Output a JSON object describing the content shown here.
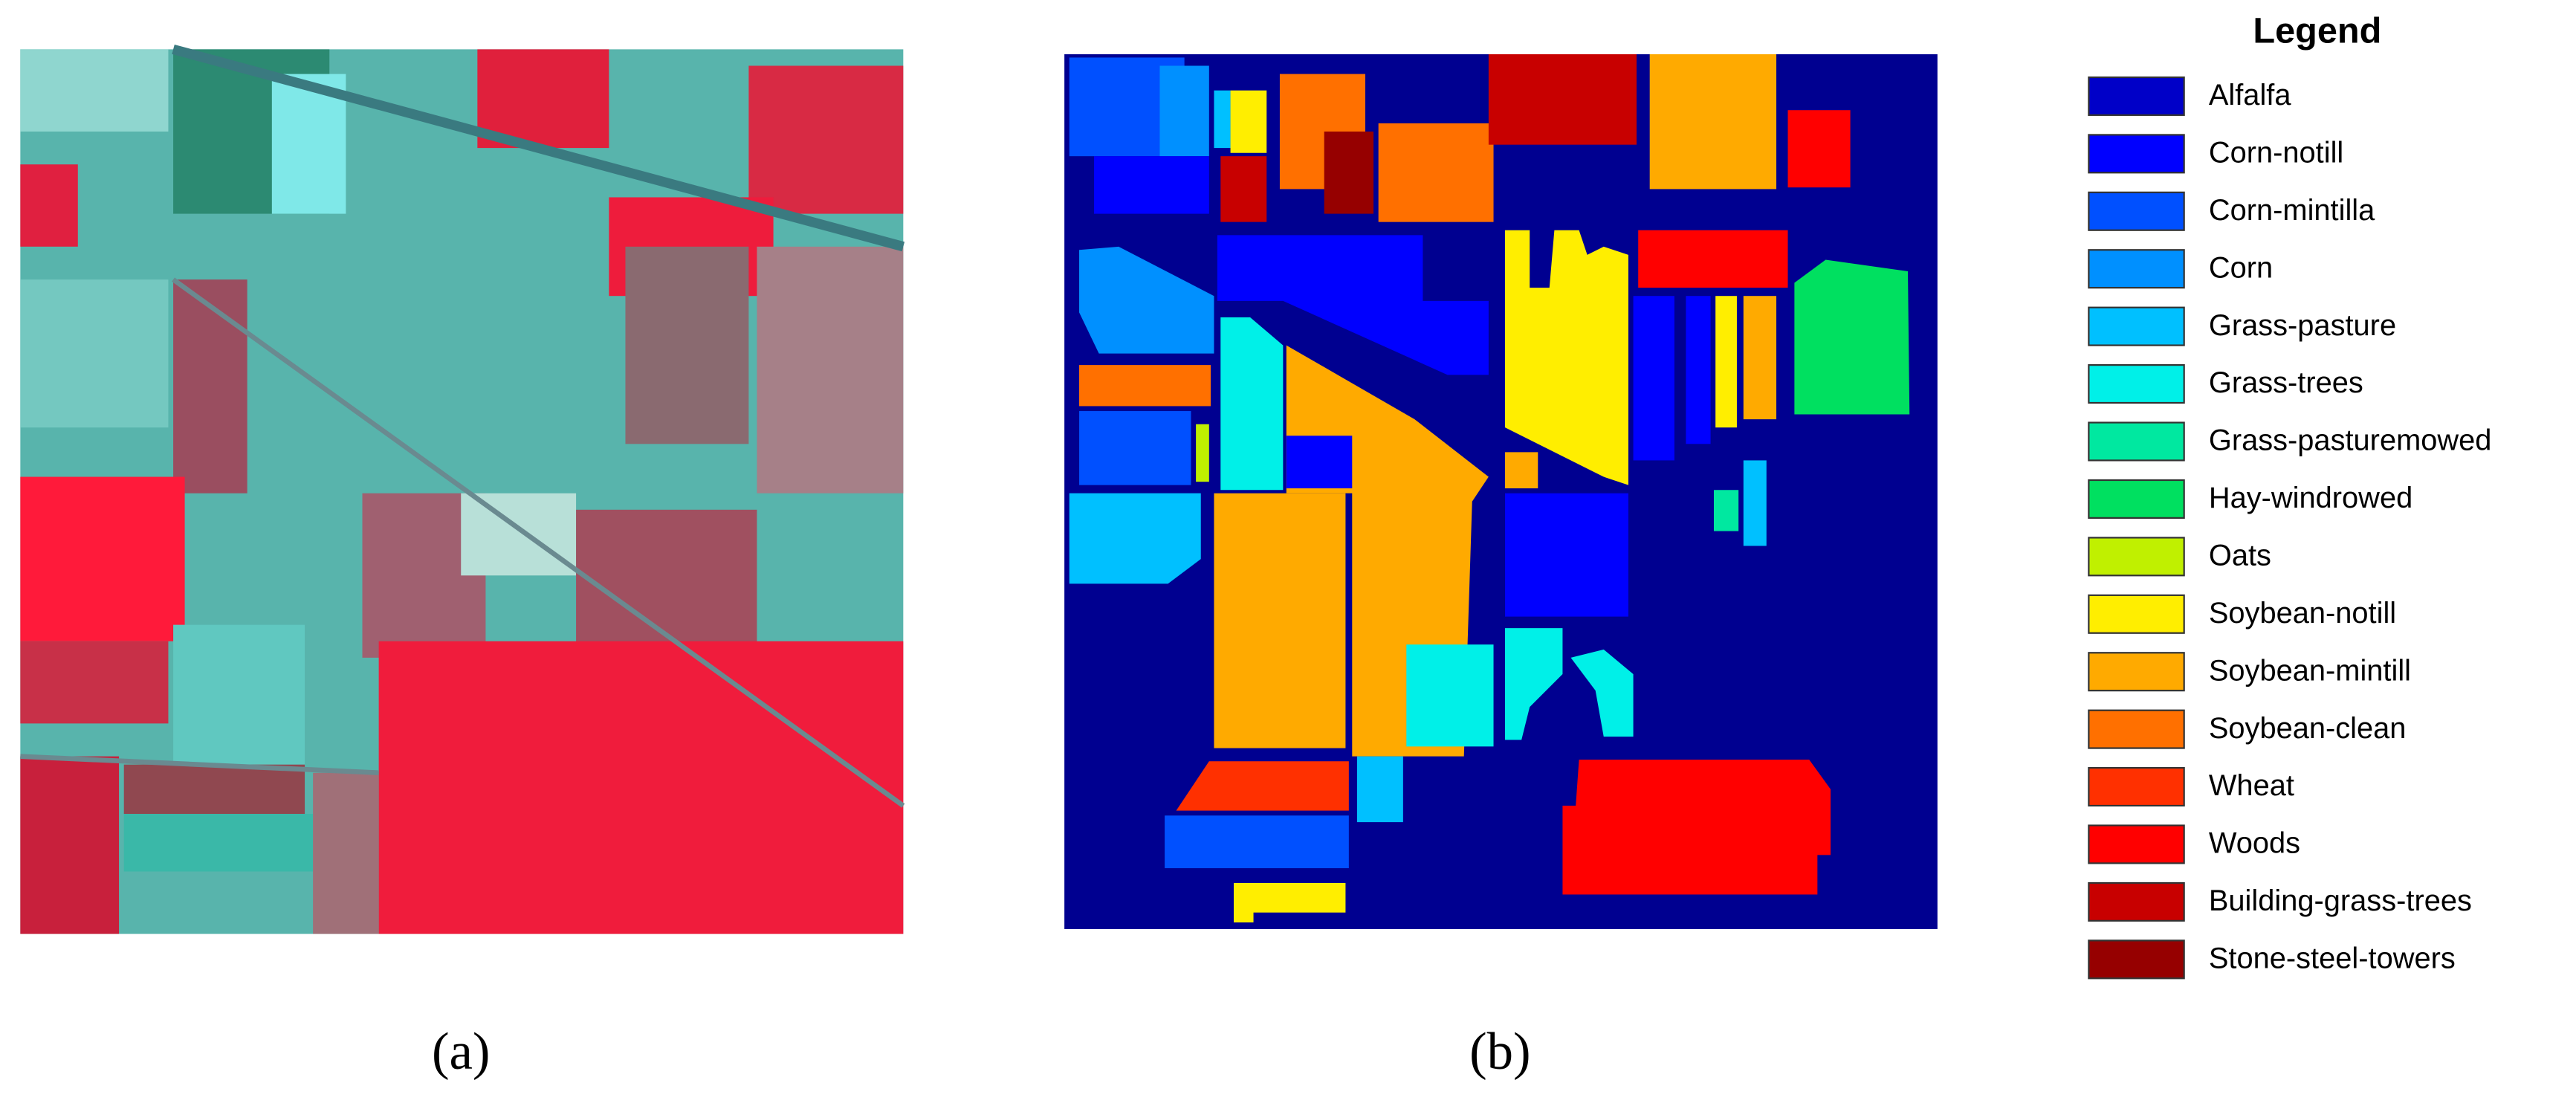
{
  "captions": [
    "(a)",
    "(b)"
  ],
  "legend": {
    "title": "Legend",
    "items": [
      {
        "name": "Alfalfa",
        "color": "#0000c8"
      },
      {
        "name": "Corn-notill",
        "color": "#0000ff"
      },
      {
        "name": "Corn-mintilla",
        "color": "#0050ff"
      },
      {
        "name": "Corn",
        "color": "#0090ff"
      },
      {
        "name": "Grass-pasture",
        "color": "#00c0ff"
      },
      {
        "name": "Grass-trees",
        "color": "#00f0e8"
      },
      {
        "name": "Grass-pasturemowed",
        "color": "#00e8a0"
      },
      {
        "name": "Hay-windrowed",
        "color": "#00e060"
      },
      {
        "name": "Oats",
        "color": "#c0f000"
      },
      {
        "name": "Soybean-notill",
        "color": "#ffee00"
      },
      {
        "name": "Soybean-mintill",
        "color": "#ffaa00"
      },
      {
        "name": "Soybean-clean",
        "color": "#ff7000"
      },
      {
        "name": "Wheat",
        "color": "#ff3000"
      },
      {
        "name": "Woods",
        "color": "#ff0000"
      },
      {
        "name": "Building-grass-trees",
        "color": "#c80000"
      },
      {
        "name": "Stone-steel-towers",
        "color": "#960000"
      }
    ]
  }
}
